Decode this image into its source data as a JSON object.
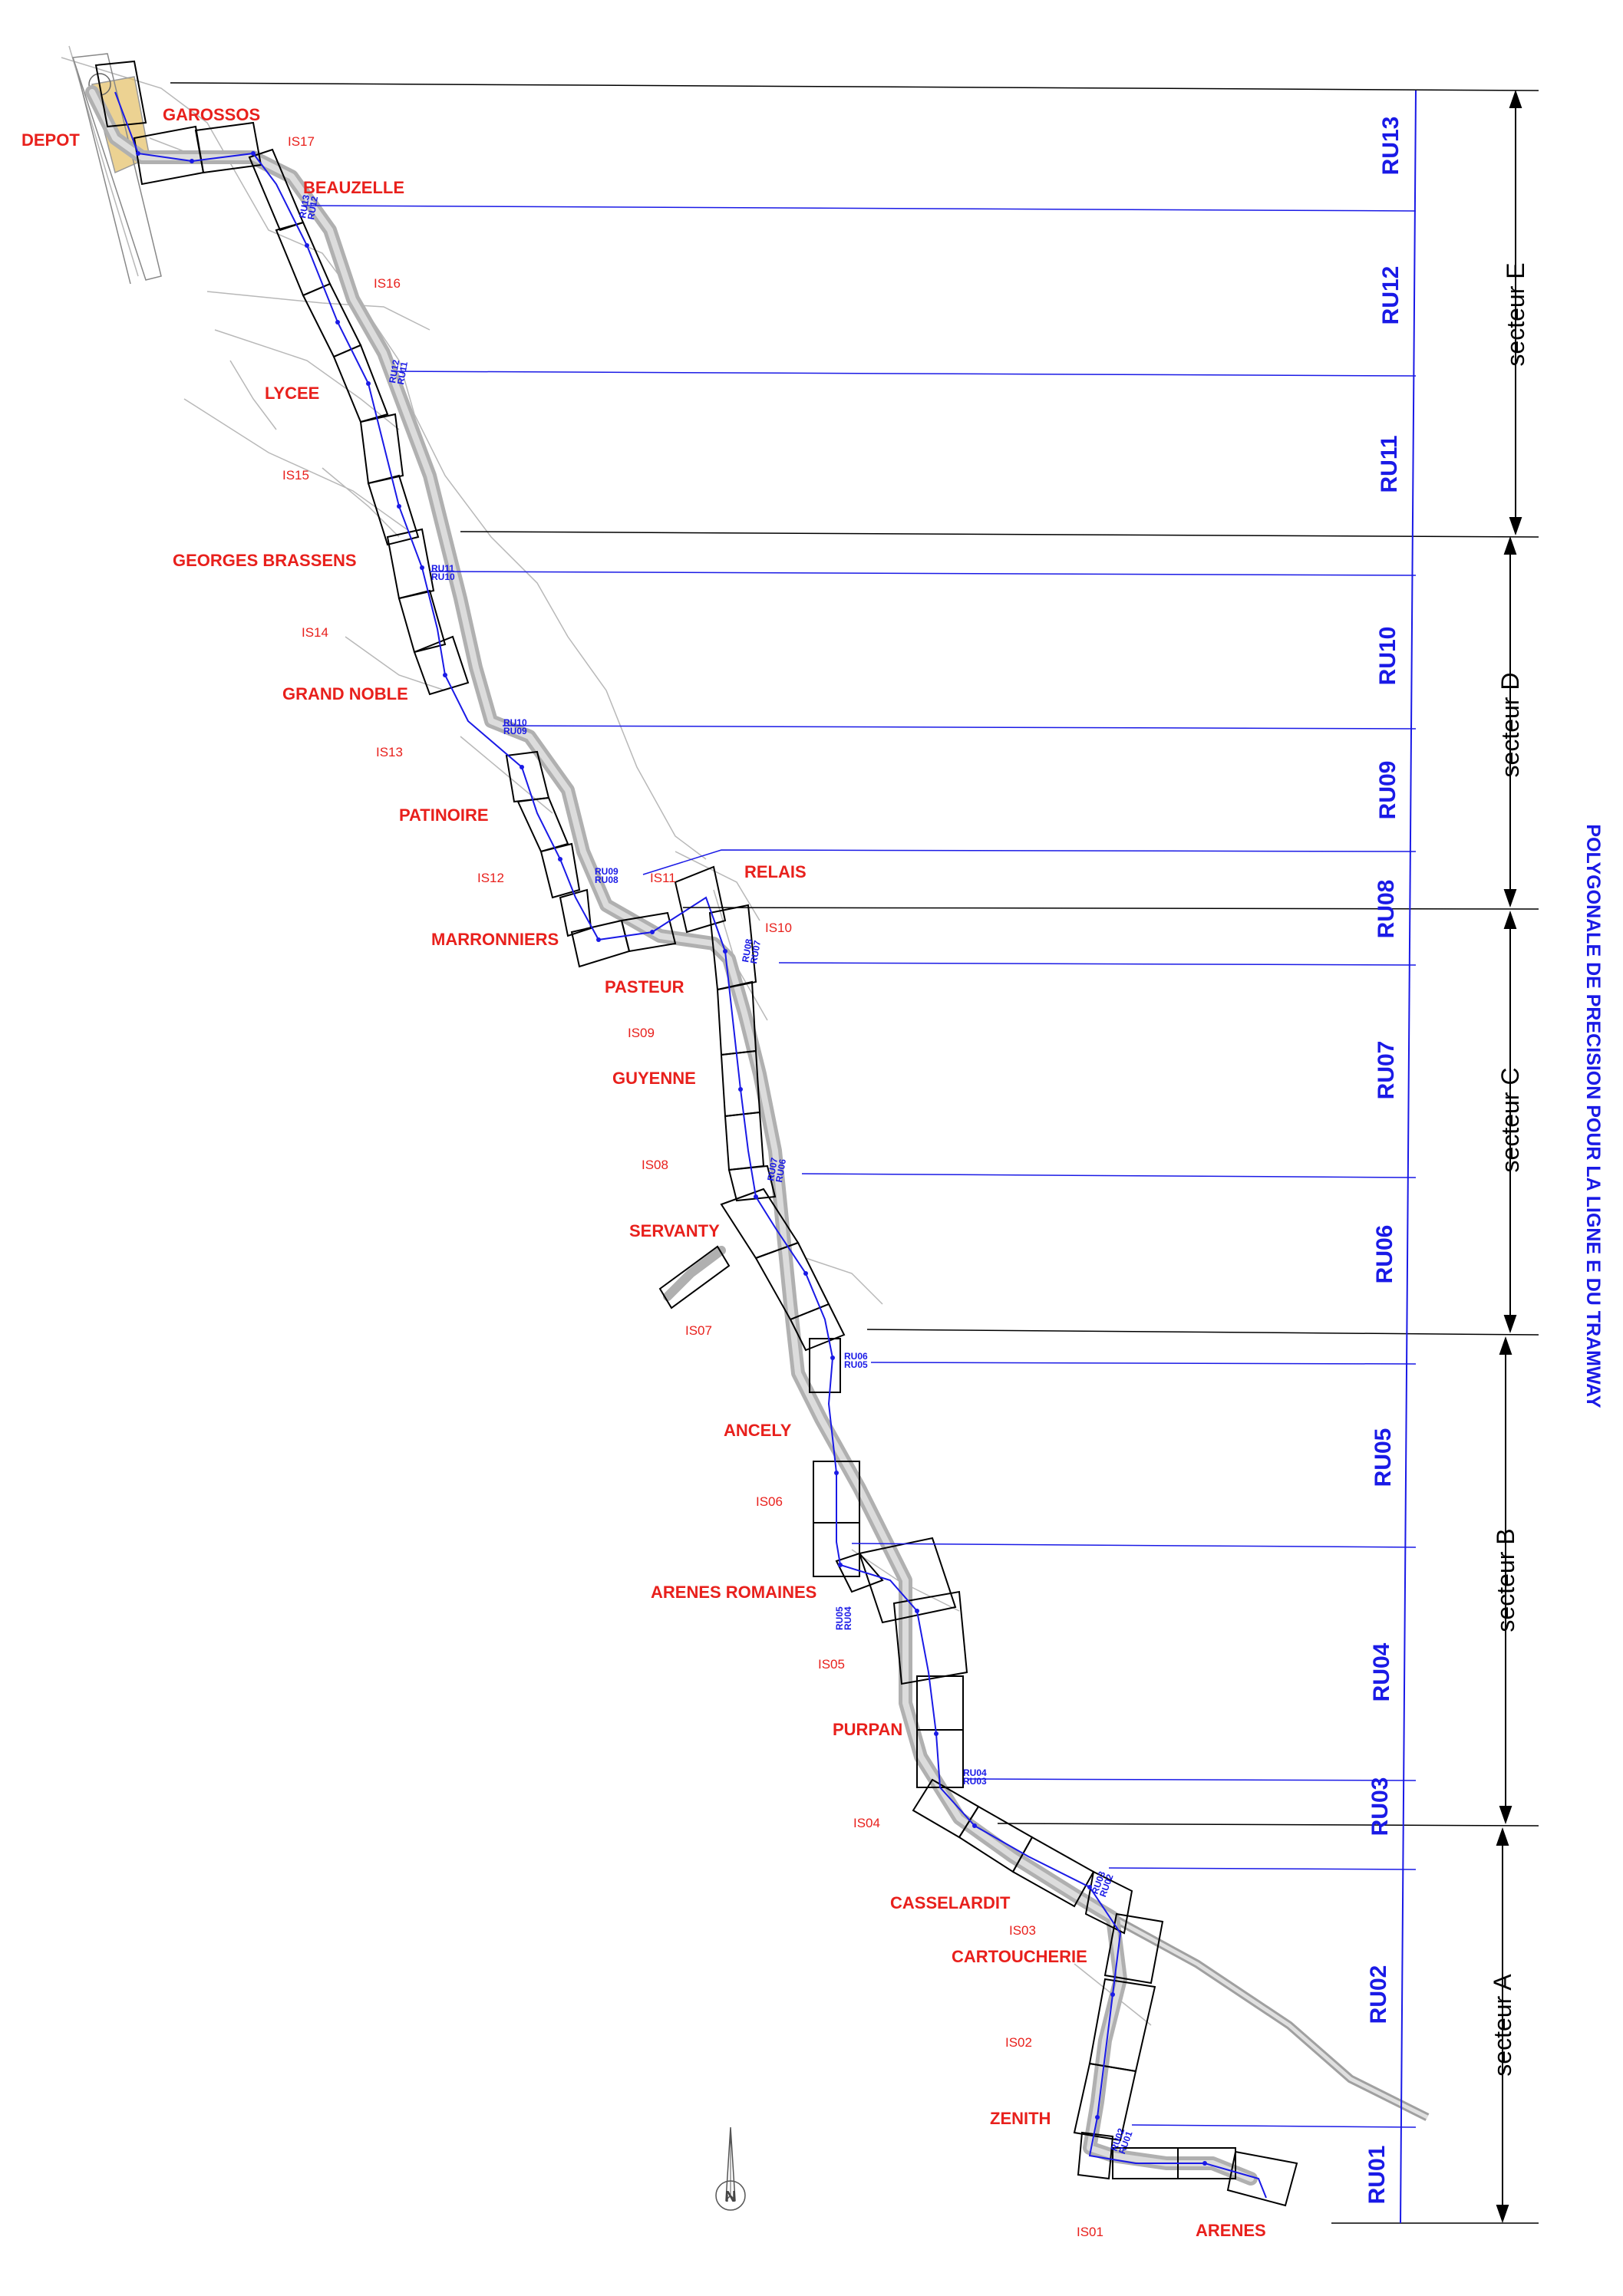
{
  "title": "POLYGONALE DE PRECISION POUR LA LIGNE E DU TRAMWAY",
  "colors": {
    "station": "#e8201c",
    "interstation": "#e8201c",
    "route": "#1a1ae6",
    "frame": "#000000",
    "depot_fill": "#e0b44a"
  },
  "stations": [
    "DEPOT",
    "GAROSSOS",
    "BEAUZELLE",
    "LYCEE",
    "GEORGES BRASSENS",
    "GRAND NOBLE",
    "PATINOIRE",
    "MARRONNIERS",
    "RELAIS",
    "PASTEUR",
    "GUYENNE",
    "SERVANTY",
    "ANCELY",
    "ARENES ROMAINES",
    "PURPAN",
    "CASSELARDIT",
    "CARTOUCHERIE",
    "ZENITH",
    "ARENES"
  ],
  "interstations": [
    "IS17",
    "IS16",
    "IS15",
    "IS14",
    "IS13",
    "IS12",
    "IS11",
    "IS10",
    "IS09",
    "IS08",
    "IS07",
    "IS06",
    "IS05",
    "IS04",
    "IS03",
    "IS02",
    "IS01"
  ],
  "ru_segments": [
    "RU13",
    "RU12",
    "RU11",
    "RU10",
    "RU09",
    "RU08",
    "RU07",
    "RU06",
    "RU05",
    "RU04",
    "RU03",
    "RU02",
    "RU01"
  ],
  "ru_boundaries": [
    {
      "upper": "RU13",
      "lower": "RU12"
    },
    {
      "upper": "RU12",
      "lower": "RU11"
    },
    {
      "upper": "RU11",
      "lower": "RU10"
    },
    {
      "upper": "RU10",
      "lower": "RU09"
    },
    {
      "upper": "RU09",
      "lower": "RU08"
    },
    {
      "upper": "RU08",
      "lower": "RU07"
    },
    {
      "upper": "RU07",
      "lower": "RU06"
    },
    {
      "upper": "RU06",
      "lower": "RU05"
    },
    {
      "upper": "RU05",
      "lower": "RU04"
    },
    {
      "upper": "RU04",
      "lower": "RU03"
    },
    {
      "upper": "RU03",
      "lower": "RU02"
    },
    {
      "upper": "RU02",
      "lower": "RU01"
    }
  ],
  "sectors": [
    "secteur E",
    "secteur D",
    "secteur C",
    "secteur B",
    "secteur A"
  ],
  "compass": "N"
}
